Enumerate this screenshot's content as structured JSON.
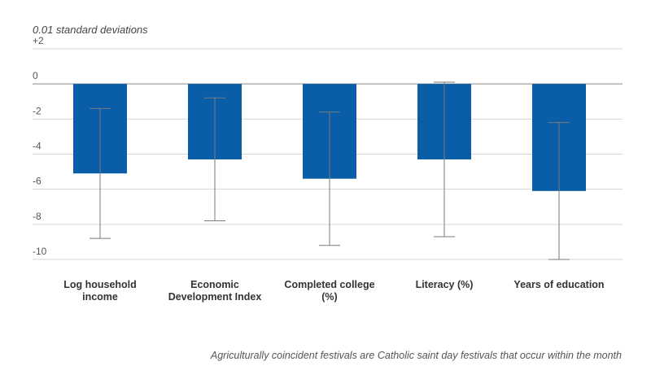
{
  "chart_data": {
    "type": "bar",
    "y_axis_label": "0.01 standard deviations",
    "categories": [
      "Log household income",
      "Economic Development Index",
      "Completed college (%)",
      "Literacy (%)",
      "Years of education"
    ],
    "values": [
      -5.1,
      -4.3,
      -5.4,
      -4.3,
      -6.1
    ],
    "errors": [
      3.7,
      3.5,
      3.8,
      4.4,
      3.9
    ],
    "color": "#0a5ea8",
    "error_color": "#7a7a7a",
    "ylim": [
      -10,
      2
    ],
    "yticks": [
      {
        "value": 2,
        "label": "+2"
      },
      0,
      -2,
      -4,
      -6,
      -8,
      -10
    ],
    "grid": true,
    "note": "Agriculturally coincident festivals are Catholic saint day festivals that occur within the month"
  }
}
